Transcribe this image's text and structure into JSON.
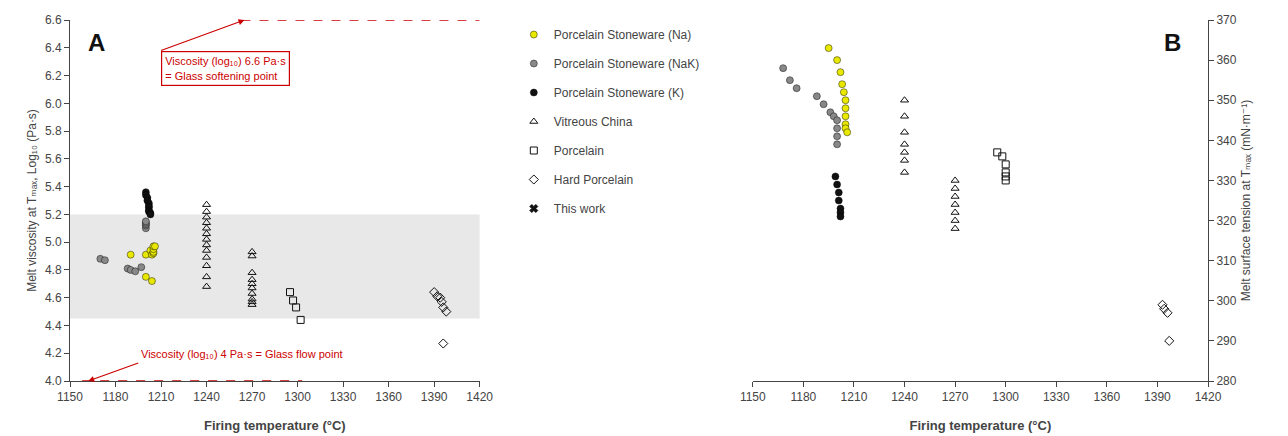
{
  "chart_data": [
    {
      "type": "scatter",
      "panel_label": "A",
      "xlabel": "Firing temperature (°C)",
      "ylabel": "Melt viscosity at Tₘₐₓ, Log₁₀ (Pa·s)",
      "xlim": [
        1150,
        1420
      ],
      "ylim": [
        4.0,
        6.6
      ],
      "xticks": [
        1150,
        1180,
        1210,
        1240,
        1270,
        1300,
        1330,
        1360,
        1390,
        1420
      ],
      "yticks": [
        {
          "value": 4.0,
          "label": "4.0"
        },
        4.2,
        4.4,
        4.6,
        4.8,
        {
          "value": 5.0,
          "label": "5.0"
        },
        5.2,
        5.4,
        5.6,
        5.8,
        {
          "value": 6.0,
          "label": "6.0"
        },
        6.2,
        6.4,
        6.6
      ],
      "grid": false,
      "legend": "upper left",
      "shaded_band": {
        "ymin": 4.45,
        "ymax": 5.2,
        "color": "#e0e0e0"
      },
      "reference_lines": [
        {
          "y": 6.6,
          "x_start": 1263,
          "x_end": 1420,
          "color": "#cc0000",
          "line_style": "dashed"
        },
        {
          "y": 4.0,
          "x_start": 1158,
          "x_end": 1303,
          "color": "#cc0000",
          "line_style": "dashed"
        }
      ],
      "annotations": [
        {
          "text": "Viscosity (log₁₀) 6.6 Pa·s\n= Glass softening point",
          "x": 1265,
          "y": 6.6,
          "text_x": 1210,
          "text_y": 6.38,
          "color": "#cc0000",
          "boxed": true
        },
        {
          "text": "Viscosity (log₁₀) 4 Pa·s = Glass flow point",
          "x": 1162,
          "y": 4.0,
          "text_x": 1195,
          "text_y": 4.13,
          "color": "#cc0000",
          "boxed": false
        }
      ],
      "series": [
        {
          "name": "Porcelain Stoneware (Na)",
          "color": "#e8e800",
          "marker": "circle",
          "x": [
            1190,
            1200,
            1200,
            1203,
            1204,
            1204,
            1205,
            1205,
            1205,
            1205,
            1206
          ],
          "values": [
            4.91,
            4.91,
            4.75,
            4.94,
            4.91,
            4.72,
            4.92,
            4.93,
            4.95,
            4.97,
            4.97
          ]
        },
        {
          "name": "Porcelain Stoneware (NaK)",
          "color": "#888888",
          "marker": "circle",
          "x": [
            1170,
            1173,
            1188,
            1190,
            1193,
            1197,
            1200,
            1200,
            1200,
            1200,
            1200
          ],
          "values": [
            4.88,
            4.87,
            4.81,
            4.8,
            4.79,
            4.82,
            5.1,
            5.12,
            5.13,
            5.14,
            5.15
          ]
        },
        {
          "name": "Porcelain Stoneware (K)",
          "color": "#111111",
          "marker": "circle",
          "x": [
            1200,
            1200,
            1201,
            1201,
            1202,
            1202,
            1202,
            1202,
            1202,
            1203,
            1203
          ],
          "values": [
            5.36,
            5.34,
            5.32,
            5.3,
            5.28,
            5.26,
            5.25,
            5.23,
            5.22,
            5.21,
            5.2
          ]
        },
        {
          "name": "Vitreous China",
          "color": "#111111",
          "marker": "triangle-up-open",
          "x": [
            1240,
            1240,
            1240,
            1240,
            1240,
            1240,
            1240,
            1240,
            1240,
            1240,
            1240,
            1240,
            1240,
            1270,
            1270,
            1270,
            1270,
            1270,
            1270,
            1270,
            1270,
            1270,
            1270
          ],
          "values": [
            5.27,
            5.22,
            5.18,
            5.14,
            5.1,
            5.06,
            5.02,
            4.98,
            4.94,
            4.89,
            4.83,
            4.75,
            4.68,
            4.93,
            4.9,
            4.78,
            4.73,
            4.7,
            4.67,
            4.63,
            4.59,
            4.57,
            4.55
          ]
        },
        {
          "name": "Porcelain",
          "color": "#111111",
          "marker": "square-open",
          "x": [
            1295,
            1297,
            1299,
            1302
          ],
          "values": [
            4.64,
            4.58,
            4.53,
            4.44
          ]
        },
        {
          "name": "Hard Porcelain",
          "color": "#111111",
          "marker": "diamond-open",
          "x": [
            1390,
            1392,
            1394,
            1395,
            1396,
            1398,
            1396
          ],
          "values": [
            4.64,
            4.61,
            4.6,
            4.57,
            4.53,
            4.5,
            4.27
          ]
        },
        {
          "name": "This work",
          "color": "#111111",
          "marker": "x",
          "x": [],
          "values": []
        }
      ]
    },
    {
      "type": "scatter",
      "panel_label": "B",
      "xlabel": "Firing temperature (°C)",
      "ylabel": "Melt surface tension at Tₘₐₓ (mN·m⁻¹)",
      "xlim": [
        1150,
        1420
      ],
      "ylim": [
        280,
        370
      ],
      "xticks": [
        1150,
        1180,
        1210,
        1240,
        1270,
        1300,
        1330,
        1360,
        1390,
        1420
      ],
      "yticks": [
        280,
        290,
        300,
        310,
        320,
        330,
        340,
        350,
        360,
        370
      ],
      "grid": false,
      "series": [
        {
          "name": "Porcelain Stoneware (Na)",
          "color": "#e8e800",
          "marker": "circle",
          "x": [
            1195,
            1200,
            1202,
            1203,
            1204,
            1205,
            1205,
            1205,
            1205,
            1205,
            1206
          ],
          "values": [
            363,
            360,
            357,
            354,
            352,
            350,
            348,
            346,
            344,
            343,
            342
          ]
        },
        {
          "name": "Porcelain Stoneware (NaK)",
          "color": "#888888",
          "marker": "circle",
          "x": [
            1168,
            1172,
            1176,
            1188,
            1192,
            1196,
            1198,
            1200,
            1200,
            1200,
            1200
          ],
          "values": [
            358,
            355,
            353,
            351,
            349,
            347,
            346,
            345,
            343,
            341,
            339
          ]
        },
        {
          "name": "Porcelain Stoneware (K)",
          "color": "#111111",
          "marker": "circle",
          "x": [
            1199,
            1200,
            1201,
            1201,
            1202,
            1202,
            1202
          ],
          "values": [
            331,
            329,
            327,
            325,
            323,
            322,
            321
          ]
        },
        {
          "name": "Vitreous China",
          "color": "#111111",
          "marker": "triangle-up-open",
          "x": [
            1240,
            1240,
            1240,
            1240,
            1240,
            1240,
            1240,
            1270,
            1270,
            1270,
            1270,
            1270,
            1270,
            1270
          ],
          "values": [
            350,
            346,
            342,
            339,
            337,
            335,
            332,
            330,
            328,
            326,
            324,
            322,
            320,
            318
          ]
        },
        {
          "name": "Porcelain",
          "color": "#111111",
          "marker": "square-open",
          "x": [
            1295,
            1298,
            1300,
            1300,
            1300,
            1300
          ],
          "values": [
            337,
            336,
            334,
            332,
            331,
            330
          ]
        },
        {
          "name": "Hard Porcelain",
          "color": "#111111",
          "marker": "diamond-open",
          "x": [
            1393,
            1394,
            1396,
            1397
          ],
          "values": [
            299,
            298,
            297,
            290
          ]
        }
      ]
    }
  ]
}
